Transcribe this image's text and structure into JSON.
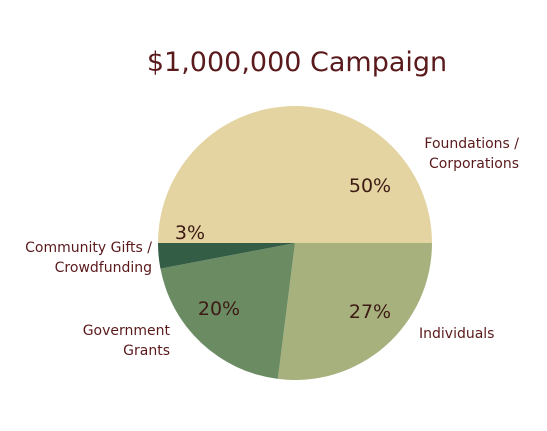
{
  "chart_data": {
    "type": "pie",
    "title": "$1,000,000 Campaign",
    "start": "right, clockwise",
    "slices": [
      {
        "label": "Individuals",
        "value": 27,
        "value_label": "27%",
        "color": "#a7b17e"
      },
      {
        "label": "Government Grants",
        "label_lines": [
          "Government",
          "Grants"
        ],
        "value": 20,
        "value_label": "20%",
        "color": "#6b8b63"
      },
      {
        "label": "Community Gifts / Crowdfunding",
        "label_lines": [
          "Community Gifts /",
          "Crowdfunding"
        ],
        "value": 3,
        "value_label": "3%",
        "color": "#335d45"
      },
      {
        "label": "Foundations / Corporations",
        "label_lines": [
          "Foundations /",
          "Corporations"
        ],
        "value": 50,
        "value_label": "50%",
        "color": "#e3d4a1"
      }
    ]
  }
}
